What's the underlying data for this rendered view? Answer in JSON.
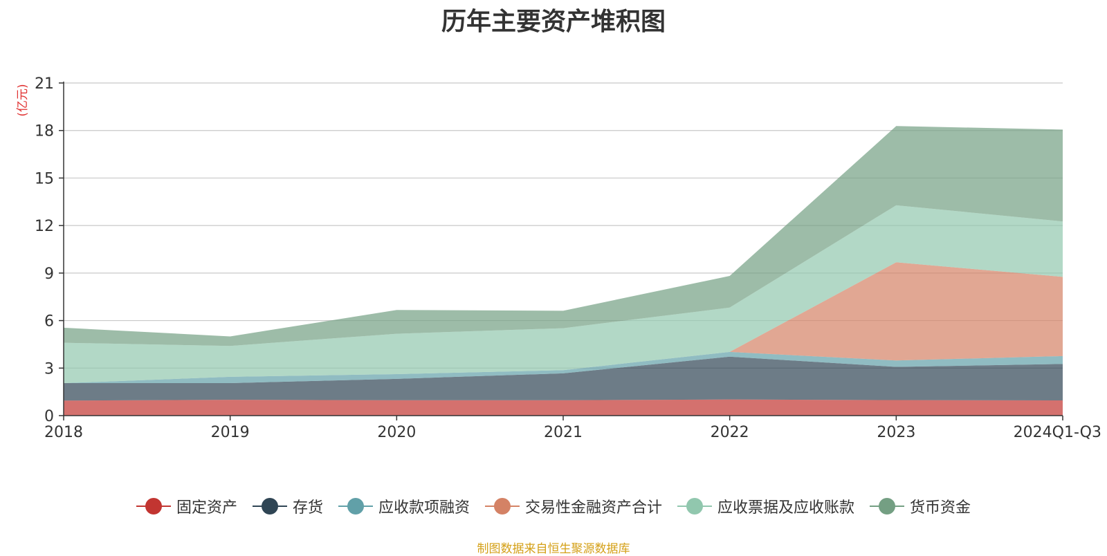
{
  "chart_data": {
    "type": "area",
    "stacked": true,
    "title": "历年主要资产堆积图",
    "unit_label": "(亿元)",
    "categories": [
      "2018",
      "2019",
      "2020",
      "2021",
      "2022",
      "2023",
      "2024Q1-Q3"
    ],
    "ylim": [
      0,
      21
    ],
    "yticks": [
      0,
      3,
      6,
      9,
      12,
      15,
      18,
      21
    ],
    "grid": true,
    "legend_position": "bottom",
    "series": [
      {
        "name": "固定资产",
        "color": "#c23531",
        "values": [
          0.95,
          1.0,
          0.97,
          0.97,
          1.02,
          0.98,
          0.96
        ]
      },
      {
        "name": "存货",
        "color": "#2f4554",
        "values": [
          1.1,
          1.05,
          1.35,
          1.7,
          2.7,
          2.1,
          2.3
        ]
      },
      {
        "name": "应收款项融资",
        "color": "#61a0a8",
        "values": [
          0.0,
          0.4,
          0.3,
          0.2,
          0.3,
          0.4,
          0.5
        ]
      },
      {
        "name": "交易性金融资产合计",
        "color": "#d48265",
        "values": [
          0.0,
          0.0,
          0.0,
          0.0,
          0.0,
          6.2,
          5.0
        ]
      },
      {
        "name": "应收票据及应收账款",
        "color": "#91c7ae",
        "values": [
          2.55,
          1.95,
          2.55,
          2.65,
          2.8,
          3.6,
          3.5
        ]
      },
      {
        "name": "货币资金",
        "color": "#749f83",
        "values": [
          0.95,
          0.6,
          1.5,
          1.1,
          2.0,
          5.0,
          5.8
        ]
      }
    ],
    "source_note": "制图数据来自恒生聚源数据库"
  }
}
